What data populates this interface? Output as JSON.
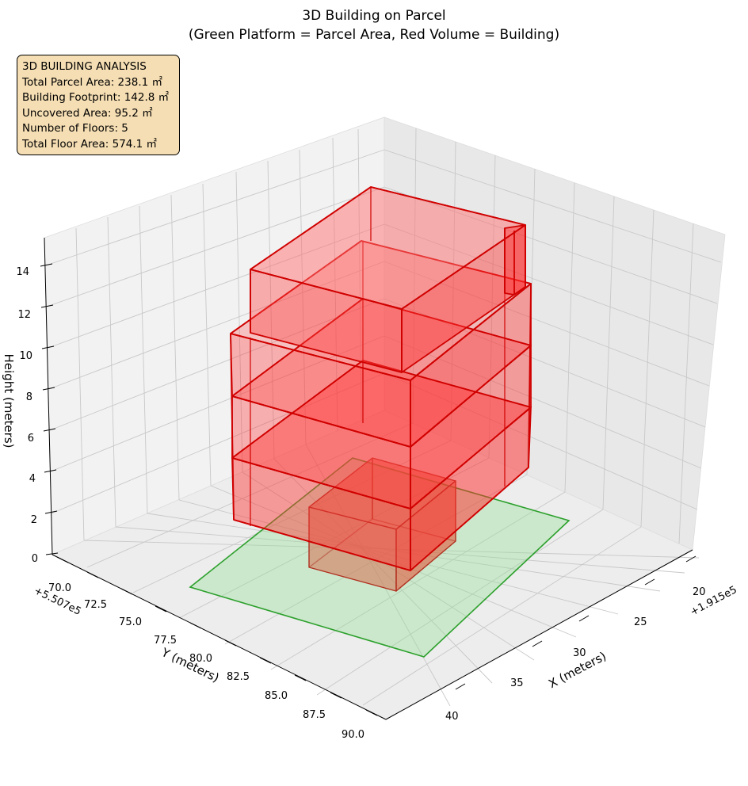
{
  "chart_data": {
    "type": "3d-bar",
    "title": "3D Building on Parcel",
    "subtitle": "(Green Platform = Parcel Area, Red Volume = Building)",
    "axes": {
      "x": {
        "label": "X (meters)",
        "offset_text": "+1.915e5",
        "ticks": [
          "20",
          "25",
          "30",
          "35",
          "40"
        ]
      },
      "y": {
        "label": "Y (meters)",
        "offset_text": "+5.507e5",
        "ticks": [
          "70.0",
          "72.5",
          "75.0",
          "77.5",
          "80.0",
          "82.5",
          "85.0",
          "87.5",
          "90.0"
        ]
      },
      "z": {
        "label": "Height (meters)",
        "ticks": [
          "0",
          "2",
          "4",
          "6",
          "8",
          "10",
          "12",
          "14"
        ]
      }
    },
    "parcel": {
      "color": "#90e090",
      "edge": "#2ca02c",
      "area_m2": 238.1
    },
    "building": {
      "color": "#ff0000",
      "edge": "#d00000",
      "floors": 5,
      "floor_height_m": 3.0,
      "footprint_m2": 142.8,
      "total_floor_area_m2": 574.1
    },
    "grid": true
  },
  "info": {
    "heading": "3D BUILDING ANALYSIS",
    "lines": [
      "Total Parcel Area: 238.1 ㎡",
      "Building Footprint: 142.8 ㎡",
      "Uncovered Area: 95.2 ㎡",
      "Number of Floors: 5",
      "Total Floor Area: 574.1 ㎡"
    ]
  }
}
